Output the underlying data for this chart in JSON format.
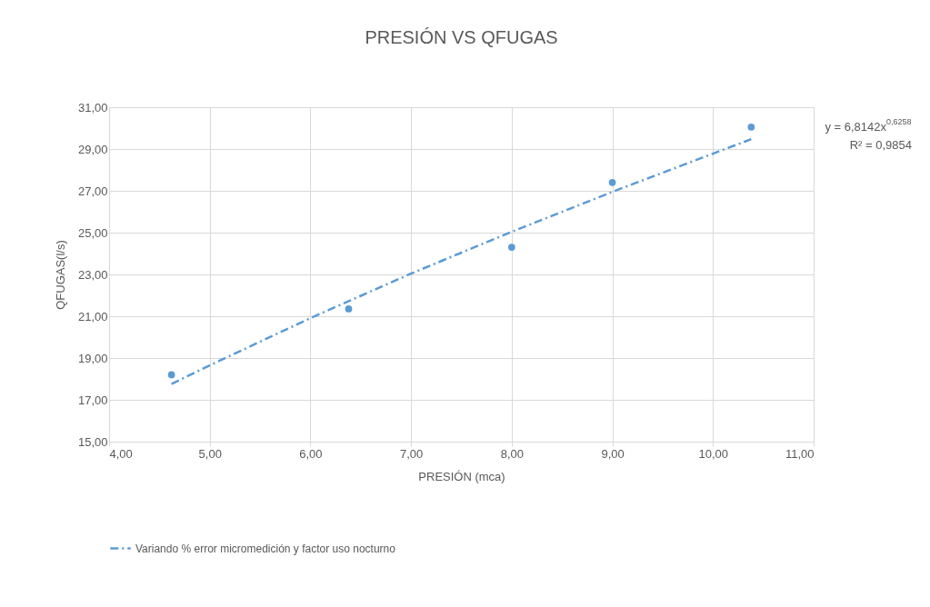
{
  "chart_data": {
    "type": "scatter",
    "title": "PRESIÓN VS QFUGAS",
    "xlabel": "PRESIÓN (mca)",
    "ylabel": "QFUGAS(l/s)",
    "series": [
      {
        "color": "#5b9bd5",
        "x": [
          4.62,
          6.38,
          8.0,
          9.0,
          10.38
        ],
        "values": [
          18.2,
          21.35,
          24.3,
          27.4,
          30.05
        ],
        "marker": "circle"
      },
      {
        "type": "line",
        "name": "Variando % error micromedición y factor uso nocturno",
        "color": "#5b9bd5",
        "line_style": "dashed",
        "marker": "none",
        "x": [
          4.62,
          5.0,
          6.0,
          7.0,
          8.0,
          9.0,
          10.0,
          10.38
        ],
        "values": [
          17.76,
          18.65,
          20.91,
          23.04,
          25.04,
          26.95,
          28.78,
          29.47
        ]
      }
    ],
    "xlim": [
      4,
      11
    ],
    "ylim": [
      15,
      31
    ],
    "xticks": [
      {
        "value": 4,
        "label": "4,00"
      },
      {
        "value": 5,
        "label": "5,00"
      },
      {
        "value": 6,
        "label": "6,00"
      },
      {
        "value": 7,
        "label": "7,00"
      },
      {
        "value": 8,
        "label": "8,00"
      },
      {
        "value": 9,
        "label": "9,00"
      },
      {
        "value": 10,
        "label": "10,00"
      },
      {
        "value": 11,
        "label": "11,00"
      }
    ],
    "yticks": [
      {
        "value": 15,
        "label": "15,00"
      },
      {
        "value": 17,
        "label": "17,00"
      },
      {
        "value": 19,
        "label": "19,00"
      },
      {
        "value": 21,
        "label": "21,00"
      },
      {
        "value": 23,
        "label": "23,00"
      },
      {
        "value": 25,
        "label": "25,00"
      },
      {
        "value": 27,
        "label": "27,00"
      },
      {
        "value": 29,
        "label": "29,00"
      },
      {
        "value": 31,
        "label": "31,00"
      }
    ],
    "grid": true,
    "legend": "bottom",
    "annotations": [
      "y = 6,8142x$^{0,6258}$",
      "R² = 0,9854"
    ]
  }
}
